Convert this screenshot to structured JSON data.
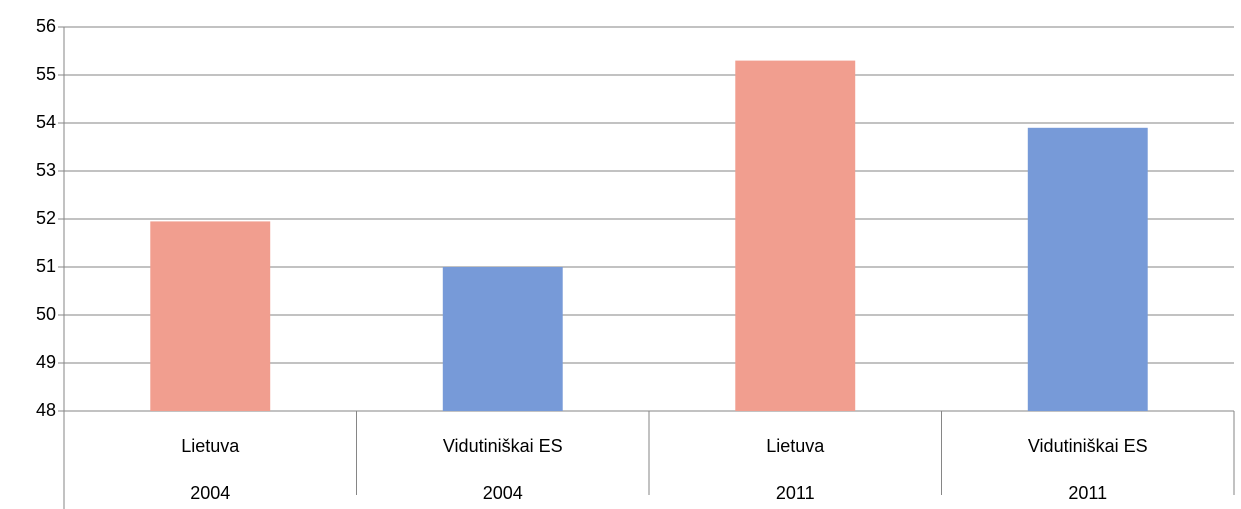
{
  "chart_data": {
    "type": "bar",
    "categories": [
      "Lietuva",
      "Vidutiniškai ES",
      "Lietuva",
      "Vidutiniškai ES"
    ],
    "category_groups": [
      "2004",
      "2004",
      "2011",
      "2011"
    ],
    "values": [
      51.95,
      51.0,
      55.3,
      53.9
    ],
    "colors": [
      "#f19e8f",
      "#779ad8",
      "#f19e8f",
      "#779ad8"
    ],
    "ylim": [
      48,
      56
    ],
    "yticks": [
      48,
      49,
      50,
      51,
      52,
      53,
      54,
      55,
      56
    ],
    "grid": true
  }
}
